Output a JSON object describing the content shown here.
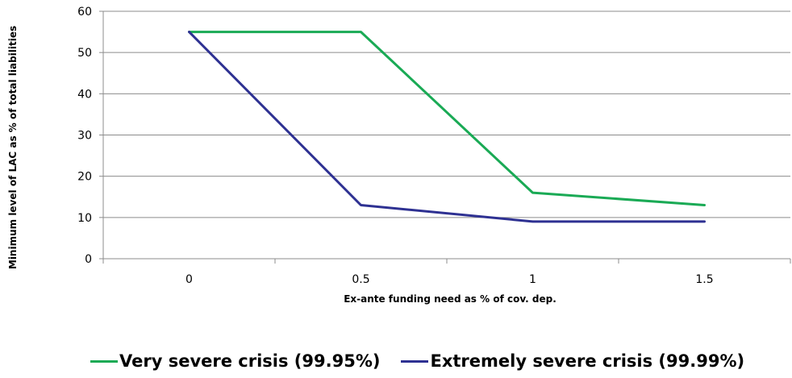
{
  "chart_data": {
    "type": "line",
    "xlabel": "Ex-ante funding need as % of cov. dep.",
    "ylabel": "Minimum level of LAC as % of total liabilities",
    "x": [
      0,
      0.5,
      1,
      1.5
    ],
    "x_tick_labels": [
      "0",
      "0.5",
      "1",
      "1.5"
    ],
    "ylim": [
      0,
      60
    ],
    "y_ticks": [
      0,
      10,
      20,
      30,
      40,
      50,
      60
    ],
    "grid": "horizontal",
    "legend_position": "bottom",
    "series": [
      {
        "name": "Very severe crisis (99.95%)",
        "color": "#1aaa55",
        "values": [
          55,
          55,
          16,
          13
        ]
      },
      {
        "name": "Extremely severe crisis (99.99%)",
        "color": "#2e3192",
        "values": [
          55,
          13,
          9,
          9
        ]
      }
    ]
  }
}
